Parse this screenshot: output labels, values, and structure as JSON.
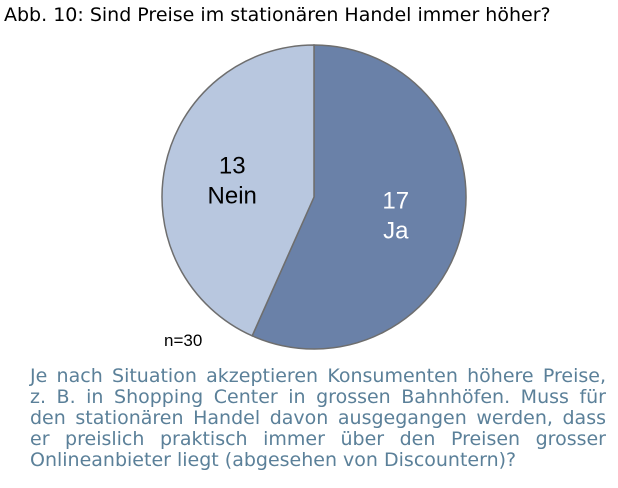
{
  "figure_title": "Abb. 10: Sind Preise im stationären Handel immer höher?",
  "sample_size": "n=30",
  "caption": "Je nach Situation akzeptieren Konsumenten höhere Preise, z. B. in Shopping Center in grossen Bahnhöfen. Muss für den stationären Handel davon ausgegangen werden, dass er preislich praktisch immer über den Preisen grosser Onlineanbieter liegt (abgesehen von Discountern)?",
  "chart_data": {
    "type": "pie",
    "title": "Abb. 10: Sind Preise im stationären Handel immer höher?",
    "start_angle_deg": 0,
    "direction": "clockwise",
    "slices": [
      {
        "label": "Ja",
        "value": 17,
        "color": "#6a81a8",
        "label_color": "#ffffff"
      },
      {
        "label": "Nein",
        "value": 13,
        "color": "#b8c7df",
        "label_color": "#000000"
      }
    ],
    "total": 30,
    "border_color": "#6e6e6e"
  }
}
